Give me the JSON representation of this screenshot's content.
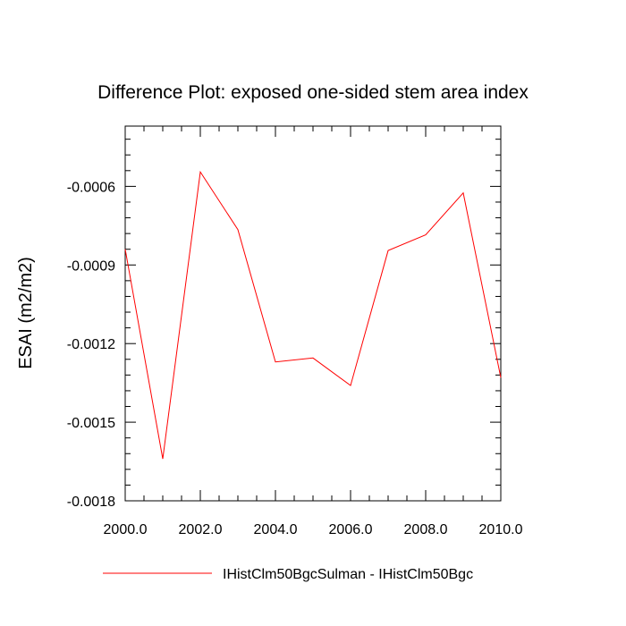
{
  "chart_data": {
    "type": "line",
    "title": "Difference Plot: exposed one-sided stem area index",
    "xlabel": "",
    "ylabel": "ESAI  (m2/m2)",
    "xlim": [
      2000.0,
      2010.0
    ],
    "ylim": [
      -0.0018,
      -0.00037
    ],
    "x_ticks": [
      2000.0,
      2002.0,
      2004.0,
      2006.0,
      2008.0,
      2010.0
    ],
    "x_tick_labels": [
      "2000.0",
      "2002.0",
      "2004.0",
      "2006.0",
      "2008.0",
      "2010.0"
    ],
    "y_ticks": [
      -0.0018,
      -0.0015,
      -0.0012,
      -0.0009,
      -0.0006
    ],
    "y_tick_labels": [
      "-0.0018",
      "-0.0015",
      "-0.0012",
      "-0.0009",
      "-0.0006"
    ],
    "x": [
      2000,
      2001,
      2002,
      2003,
      2004,
      2005,
      2006,
      2007,
      2008,
      2009,
      2010
    ],
    "series": [
      {
        "name": "IHistClm50BgcSulman - IHistClm50Bgc",
        "color": "#ff0000",
        "values": [
          -0.00084,
          -0.00164,
          -0.000545,
          -0.000765,
          -0.00127,
          -0.001255,
          -0.00136,
          -0.000845,
          -0.000785,
          -0.000625,
          -0.00133
        ]
      }
    ],
    "legend_position": "bottom",
    "grid": false
  }
}
